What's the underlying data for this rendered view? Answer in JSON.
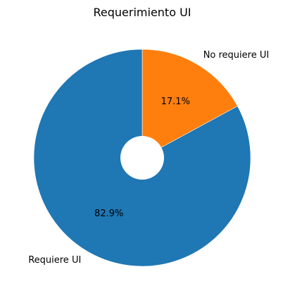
{
  "chart_data": {
    "type": "pie",
    "title": "Requerimiento UI",
    "categories": [
      "No requiere UI",
      "Requiere UI"
    ],
    "values": [
      17.1,
      82.9
    ],
    "percent_labels": [
      "17.1%",
      "82.9%"
    ],
    "colors": [
      "#ff7f0e",
      "#1f77b4"
    ],
    "start_angle": "top (12 o'clock), clockwise",
    "donut_hole": true
  }
}
